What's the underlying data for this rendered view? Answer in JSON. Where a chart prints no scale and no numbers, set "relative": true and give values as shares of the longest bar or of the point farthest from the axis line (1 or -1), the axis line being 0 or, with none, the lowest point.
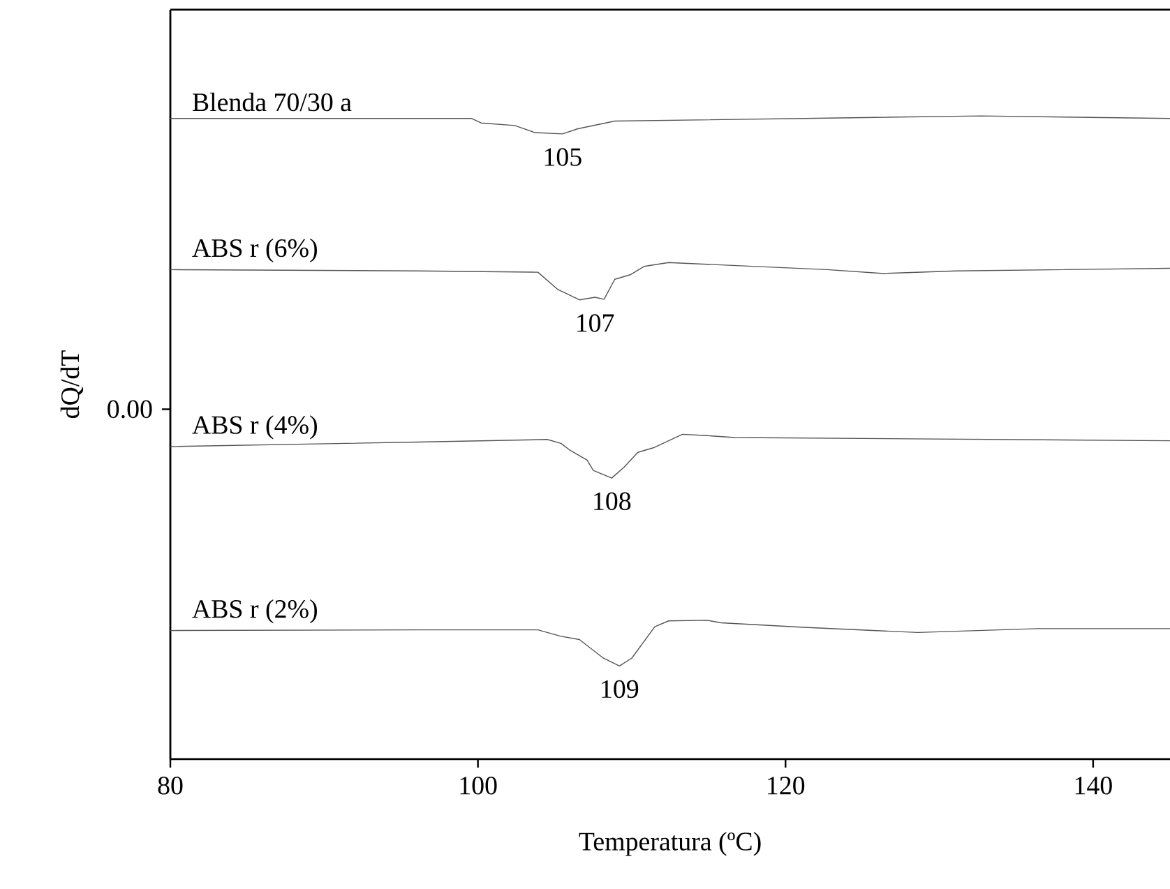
{
  "chart_data": {
    "type": "line",
    "xlabel": "Temperatura (ºC)",
    "ylabel": "dQ/dT",
    "relative": true,
    "xlim": [
      80,
      145
    ],
    "xticks": [
      80,
      100,
      120,
      140
    ],
    "grid": false,
    "legend": false,
    "series": [
      {
        "name": "Blenda 70/30 a",
        "color": "#555555",
        "x": [
          80,
          99.6,
          100.2,
          102.4,
          103.7,
          105.5,
          106.5,
          108.3,
          108.9,
          121.2,
          132.7,
          145
        ],
        "values": [
          0.996,
          0.996,
          0.989,
          0.985,
          0.974,
          0.972,
          0.98,
          0.989,
          0.992,
          0.996,
          1.0,
          0.996
        ]
      },
      {
        "name": "ABS r (6%)",
        "color": "#555555",
        "x": [
          80,
          96.1,
          103.9,
          105.2,
          106.6,
          107.6,
          108.2,
          108.9,
          109.9,
          110.8,
          112.4,
          122.7,
          126.4,
          131.1,
          145
        ],
        "values": [
          0.761,
          0.759,
          0.757,
          0.73,
          0.714,
          0.718,
          0.715,
          0.746,
          0.753,
          0.766,
          0.772,
          0.761,
          0.755,
          0.759,
          0.763
        ]
      },
      {
        "name": "ABS r (4%)",
        "color": "#555555",
        "x": [
          80,
          96.1,
          104.5,
          105.4,
          106.0,
          107.1,
          107.5,
          107.9,
          108.7,
          109.5,
          110.4,
          111.4,
          113.3,
          114.9,
          116.7,
          145
        ],
        "values": [
          0.486,
          0.493,
          0.497,
          0.491,
          0.48,
          0.465,
          0.449,
          0.445,
          0.437,
          0.454,
          0.477,
          0.484,
          0.505,
          0.503,
          0.5,
          0.495
        ]
      },
      {
        "name": "ABS r (2%)",
        "color": "#555555",
        "x": [
          80,
          96.1,
          103.9,
          105.4,
          106.6,
          108.1,
          109.2,
          110.0,
          111.5,
          112.4,
          114.9,
          115.8,
          121.2,
          128.6,
          136.4,
          145
        ],
        "values": [
          0.2,
          0.201,
          0.201,
          0.191,
          0.186,
          0.158,
          0.145,
          0.157,
          0.206,
          0.215,
          0.216,
          0.212,
          0.205,
          0.197,
          0.203,
          0.203
        ]
      }
    ],
    "annotations": [
      {
        "text": "105",
        "x": 105.5,
        "y": 0.972
      },
      {
        "text": "107",
        "x": 107.6,
        "y": 0.714
      },
      {
        "text": "108",
        "x": 108.7,
        "y": 0.437
      },
      {
        "text": "109",
        "x": 109.2,
        "y": 0.145
      },
      "0.00"
    ]
  }
}
